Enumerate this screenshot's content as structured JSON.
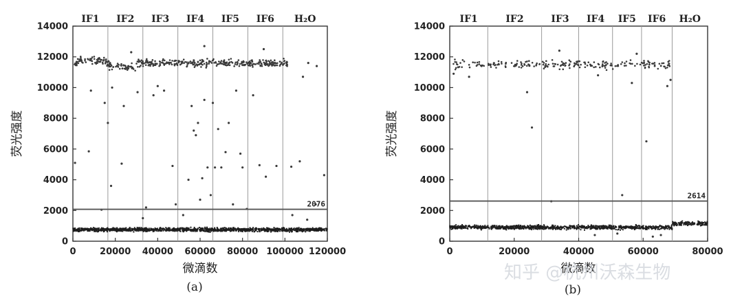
{
  "watermark": "知乎 @杭州沃森生物",
  "colors": {
    "point": "#3a3a3a",
    "dense": "#1e1e1e",
    "threshold": "#555555",
    "axis": "#333333",
    "grid": "#9a9a9a"
  },
  "chart_data": [
    {
      "type": "scatter",
      "subtitle": "(a)",
      "xlabel": "微滴数",
      "ylabel": "荧光强度",
      "xlim": [
        0,
        120000
      ],
      "ylim": [
        0,
        14000
      ],
      "xticks": [
        "0",
        "20000",
        "40000",
        "60000",
        "80000",
        "100000",
        "120000"
      ],
      "yticks": [
        "0",
        "2000",
        "4000",
        "6000",
        "8000",
        "10000",
        "12000",
        "14000"
      ],
      "groups": [
        {
          "label": "IF1",
          "x_start": 0,
          "x_end": 16500
        },
        {
          "label": "IF2",
          "x_start": 16500,
          "x_end": 33000
        },
        {
          "label": "IF3",
          "x_start": 33000,
          "x_end": 49500
        },
        {
          "label": "IF4",
          "x_start": 49500,
          "x_end": 66000
        },
        {
          "label": "IF5",
          "x_start": 66000,
          "x_end": 82500
        },
        {
          "label": "IF6",
          "x_start": 82500,
          "x_end": 99000
        },
        {
          "label": "H₂O",
          "x_start": 99000,
          "x_end": 120000
        }
      ],
      "threshold": {
        "value": 2076,
        "label": "2076"
      },
      "positive_band": {
        "x_end": 102000,
        "y_mean": 11600,
        "y_spread": 350
      },
      "negative_band": {
        "y_mean": 750,
        "y_spread": 180
      },
      "scattered_points": [
        [
          1000,
          5100
        ],
        [
          7500,
          5850
        ],
        [
          8500,
          9800
        ],
        [
          13500,
          2050
        ],
        [
          15000,
          9000
        ],
        [
          16500,
          7700
        ],
        [
          18000,
          3600
        ],
        [
          18500,
          10000
        ],
        [
          23000,
          5050
        ],
        [
          24000,
          8800
        ],
        [
          30500,
          9700
        ],
        [
          33000,
          1500
        ],
        [
          34500,
          2200
        ],
        [
          38000,
          9500
        ],
        [
          40000,
          10100
        ],
        [
          43000,
          9800
        ],
        [
          47000,
          4900
        ],
        [
          48500,
          2400
        ],
        [
          52000,
          1700
        ],
        [
          54500,
          4000
        ],
        [
          56000,
          8800
        ],
        [
          57000,
          7200
        ],
        [
          58000,
          6900
        ],
        [
          59000,
          7700
        ],
        [
          60000,
          2700
        ],
        [
          61000,
          4100
        ],
        [
          62000,
          9200
        ],
        [
          63500,
          4800
        ],
        [
          65000,
          3000
        ],
        [
          66000,
          9000
        ],
        [
          67000,
          4800
        ],
        [
          68500,
          7300
        ],
        [
          70000,
          4800
        ],
        [
          72000,
          5800
        ],
        [
          73500,
          7700
        ],
        [
          75500,
          2400
        ],
        [
          77000,
          9800
        ],
        [
          79000,
          5700
        ],
        [
          80000,
          4800
        ],
        [
          82000,
          2100
        ],
        [
          85000,
          9500
        ],
        [
          88000,
          4950
        ],
        [
          91000,
          4200
        ],
        [
          96000,
          4900
        ],
        [
          103000,
          4850
        ],
        [
          107000,
          5200
        ],
        [
          108500,
          10700
        ],
        [
          111000,
          11600
        ],
        [
          115000,
          11400
        ],
        [
          118500,
          4300
        ],
        [
          103500,
          1700
        ],
        [
          110500,
          1400
        ],
        [
          114500,
          2400
        ]
      ],
      "high_points": [
        [
          62000,
          12700
        ],
        [
          90000,
          12500
        ],
        [
          27500,
          12300
        ]
      ]
    },
    {
      "type": "scatter",
      "subtitle": "(b)",
      "xlabel": "微滴数",
      "ylabel": "荧光强度",
      "xlim": [
        0,
        80000
      ],
      "ylim": [
        0,
        14000
      ],
      "xticks": [
        "0",
        "20000",
        "40000",
        "60000",
        "80000"
      ],
      "yticks": [
        "0",
        "2000",
        "4000",
        "6000",
        "8000",
        "10000",
        "12000",
        "14000"
      ],
      "groups": [
        {
          "label": "IF1",
          "x_start": 0,
          "x_end": 11800
        },
        {
          "label": "IF2",
          "x_start": 11800,
          "x_end": 28500
        },
        {
          "label": "IF3",
          "x_start": 28500,
          "x_end": 40000
        },
        {
          "label": "IF4",
          "x_start": 40000,
          "x_end": 50500
        },
        {
          "label": "IF5",
          "x_start": 50500,
          "x_end": 59500
        },
        {
          "label": "IF6",
          "x_start": 59500,
          "x_end": 69000
        },
        {
          "label": "H₂O",
          "x_start": 69000,
          "x_end": 80000
        }
      ],
      "threshold": {
        "value": 2614,
        "label": "2614"
      },
      "positive_band": {
        "x_end": 69000,
        "y_mean": 11500,
        "y_spread": 380
      },
      "negative_band": {
        "y_mean": 900,
        "y_spread": 200
      },
      "scattered_points": [
        [
          24000,
          9700
        ],
        [
          25500,
          7400
        ],
        [
          31500,
          2600
        ],
        [
          53500,
          3000
        ],
        [
          61000,
          6500
        ],
        [
          1200,
          10900
        ],
        [
          6000,
          10700
        ],
        [
          46000,
          10800
        ],
        [
          56500,
          10300
        ],
        [
          67500,
          10100
        ],
        [
          68500,
          10500
        ],
        [
          45000,
          400
        ],
        [
          52000,
          500
        ],
        [
          63000,
          300
        ],
        [
          65500,
          400
        ]
      ],
      "high_points": [
        [
          34000,
          12400
        ],
        [
          58000,
          12200
        ]
      ]
    }
  ]
}
